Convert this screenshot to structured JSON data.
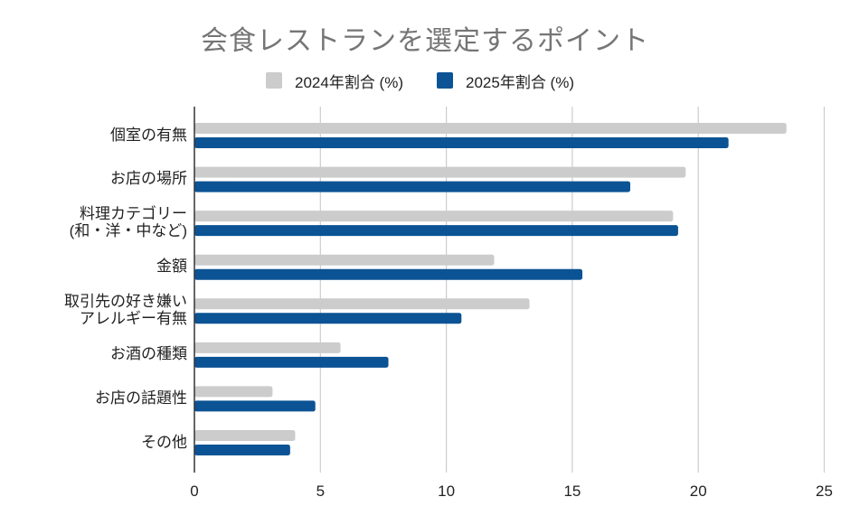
{
  "chart_data": {
    "type": "bar",
    "orientation": "horizontal",
    "title": "会食レストランを選定するポイント",
    "xlabel": "",
    "ylabel": "",
    "categories": [
      "個室の有無",
      "お店の場所",
      "料理カテゴリー\n(和・洋・中など)",
      "金額",
      "取引先の好き嫌い\nアレルギー有無",
      "お酒の種類",
      "お店の話題性",
      "その他"
    ],
    "series": [
      {
        "name": "2024年割合 (%)",
        "color": "#CCCCCC",
        "values": [
          23.5,
          19.5,
          19.0,
          11.9,
          13.3,
          5.8,
          3.1,
          4.0
        ]
      },
      {
        "name": "2025年割合 (%)",
        "color": "#0B5394",
        "values": [
          21.2,
          17.3,
          19.2,
          15.4,
          10.6,
          7.7,
          4.8,
          3.8
        ]
      }
    ],
    "xlim": [
      0,
      25
    ],
    "xticks": [
      0,
      5,
      10,
      15,
      20,
      25
    ],
    "grid": true,
    "legend_position": "top-center"
  }
}
